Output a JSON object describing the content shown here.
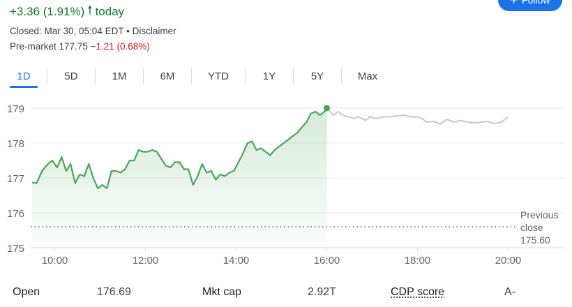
{
  "header": {
    "change": "+3.36 (1.91%)",
    "change_arrow_icon": "arrow-up-icon",
    "change_suffix": "today",
    "follow_label": "Follow",
    "follow_icon": "plus-icon",
    "closed_text": "Closed: Mar 30, 05:04 EDT",
    "separator": "•",
    "disclaimer": "Disclaimer",
    "premarket_label": "Pre-market",
    "premarket_price": "177.75",
    "premarket_change": "−1.21 (0.68%)"
  },
  "colors": {
    "positive": "#137333",
    "negative": "#c5221f",
    "accent": "#1a73e8",
    "line": "#4aa35a",
    "extended_line": "#c8c8c8"
  },
  "tabs": [
    {
      "label": "1D",
      "active": true
    },
    {
      "label": "5D",
      "active": false
    },
    {
      "label": "1M",
      "active": false
    },
    {
      "label": "6M",
      "active": false
    },
    {
      "label": "YTD",
      "active": false
    },
    {
      "label": "1Y",
      "active": false
    },
    {
      "label": "5Y",
      "active": false
    },
    {
      "label": "Max",
      "active": false
    }
  ],
  "chart_data": {
    "type": "line",
    "y_ticks": [
      "179",
      "178",
      "177",
      "176",
      "175"
    ],
    "x_ticks": [
      "10:00",
      "12:00",
      "14:00",
      "16:00",
      "18:00",
      "20:00"
    ],
    "ylim": [
      175,
      179.2
    ],
    "xlim": [
      9.5,
      20.5
    ],
    "previous_close": 175.6,
    "previous_close_label": [
      "Previous",
      "close",
      "175.60"
    ],
    "series": [
      {
        "segment": "regular",
        "x": [
          9.5,
          9.6,
          9.72,
          9.85,
          9.95,
          10.05,
          10.15,
          10.25,
          10.35,
          10.45,
          10.55,
          10.65,
          10.75,
          10.85,
          10.95,
          11.05,
          11.15,
          11.25,
          11.35,
          11.45,
          11.55,
          11.65,
          11.75,
          11.85,
          11.95,
          12.05,
          12.15,
          12.25,
          12.35,
          12.45,
          12.55,
          12.65,
          12.75,
          12.85,
          12.95,
          13.05,
          13.15,
          13.25,
          13.35,
          13.45,
          13.55,
          13.65,
          13.75,
          13.85,
          13.95,
          14.05,
          14.15,
          14.25,
          14.35,
          14.45,
          14.55,
          14.65,
          14.75,
          14.85,
          14.95,
          15.05,
          15.15,
          15.25,
          15.35,
          15.45,
          15.55,
          15.65,
          15.75,
          15.85,
          15.95,
          16.0
        ],
        "values": [
          176.87,
          176.85,
          177.2,
          177.4,
          177.5,
          177.3,
          177.6,
          177.2,
          177.4,
          176.85,
          177.1,
          177.05,
          177.4,
          177.0,
          176.7,
          176.8,
          176.7,
          177.2,
          177.2,
          177.15,
          177.25,
          177.5,
          177.5,
          177.8,
          177.75,
          177.75,
          177.8,
          177.75,
          177.55,
          177.35,
          177.3,
          177.45,
          177.45,
          177.25,
          177.25,
          176.8,
          177.05,
          177.4,
          177.15,
          177.2,
          176.95,
          177.1,
          177.05,
          177.15,
          177.2,
          177.45,
          177.7,
          178.0,
          178.05,
          177.8,
          177.85,
          177.75,
          177.65,
          177.8,
          177.9,
          178.0,
          178.1,
          178.2,
          178.3,
          178.45,
          178.6,
          178.85,
          178.9,
          178.8,
          178.9,
          179.0
        ]
      },
      {
        "segment": "extended",
        "x": [
          16.0,
          16.15,
          16.25,
          16.35,
          16.5,
          16.6,
          16.7,
          16.85,
          16.95,
          17.1,
          17.25,
          17.4,
          17.55,
          17.7,
          17.85,
          18.0,
          18.1,
          18.2,
          18.35,
          18.5,
          18.65,
          18.8,
          18.95,
          19.1,
          19.25,
          19.4,
          19.55,
          19.7,
          19.85,
          20.0
        ],
        "values": [
          179.0,
          178.8,
          178.9,
          178.8,
          178.75,
          178.7,
          178.75,
          178.65,
          178.75,
          178.7,
          178.75,
          178.75,
          178.78,
          178.8,
          178.75,
          178.75,
          178.7,
          178.6,
          178.62,
          178.55,
          178.68,
          178.6,
          178.65,
          178.6,
          178.58,
          178.6,
          178.62,
          178.55,
          178.6,
          178.75
        ]
      }
    ]
  },
  "stats": [
    {
      "label": "Open",
      "value": "176.69",
      "link": false
    },
    {
      "label": "Mkt cap",
      "value": "2.92T",
      "link": false
    },
    {
      "label": "CDP score",
      "value": "A-",
      "link": true
    }
  ]
}
